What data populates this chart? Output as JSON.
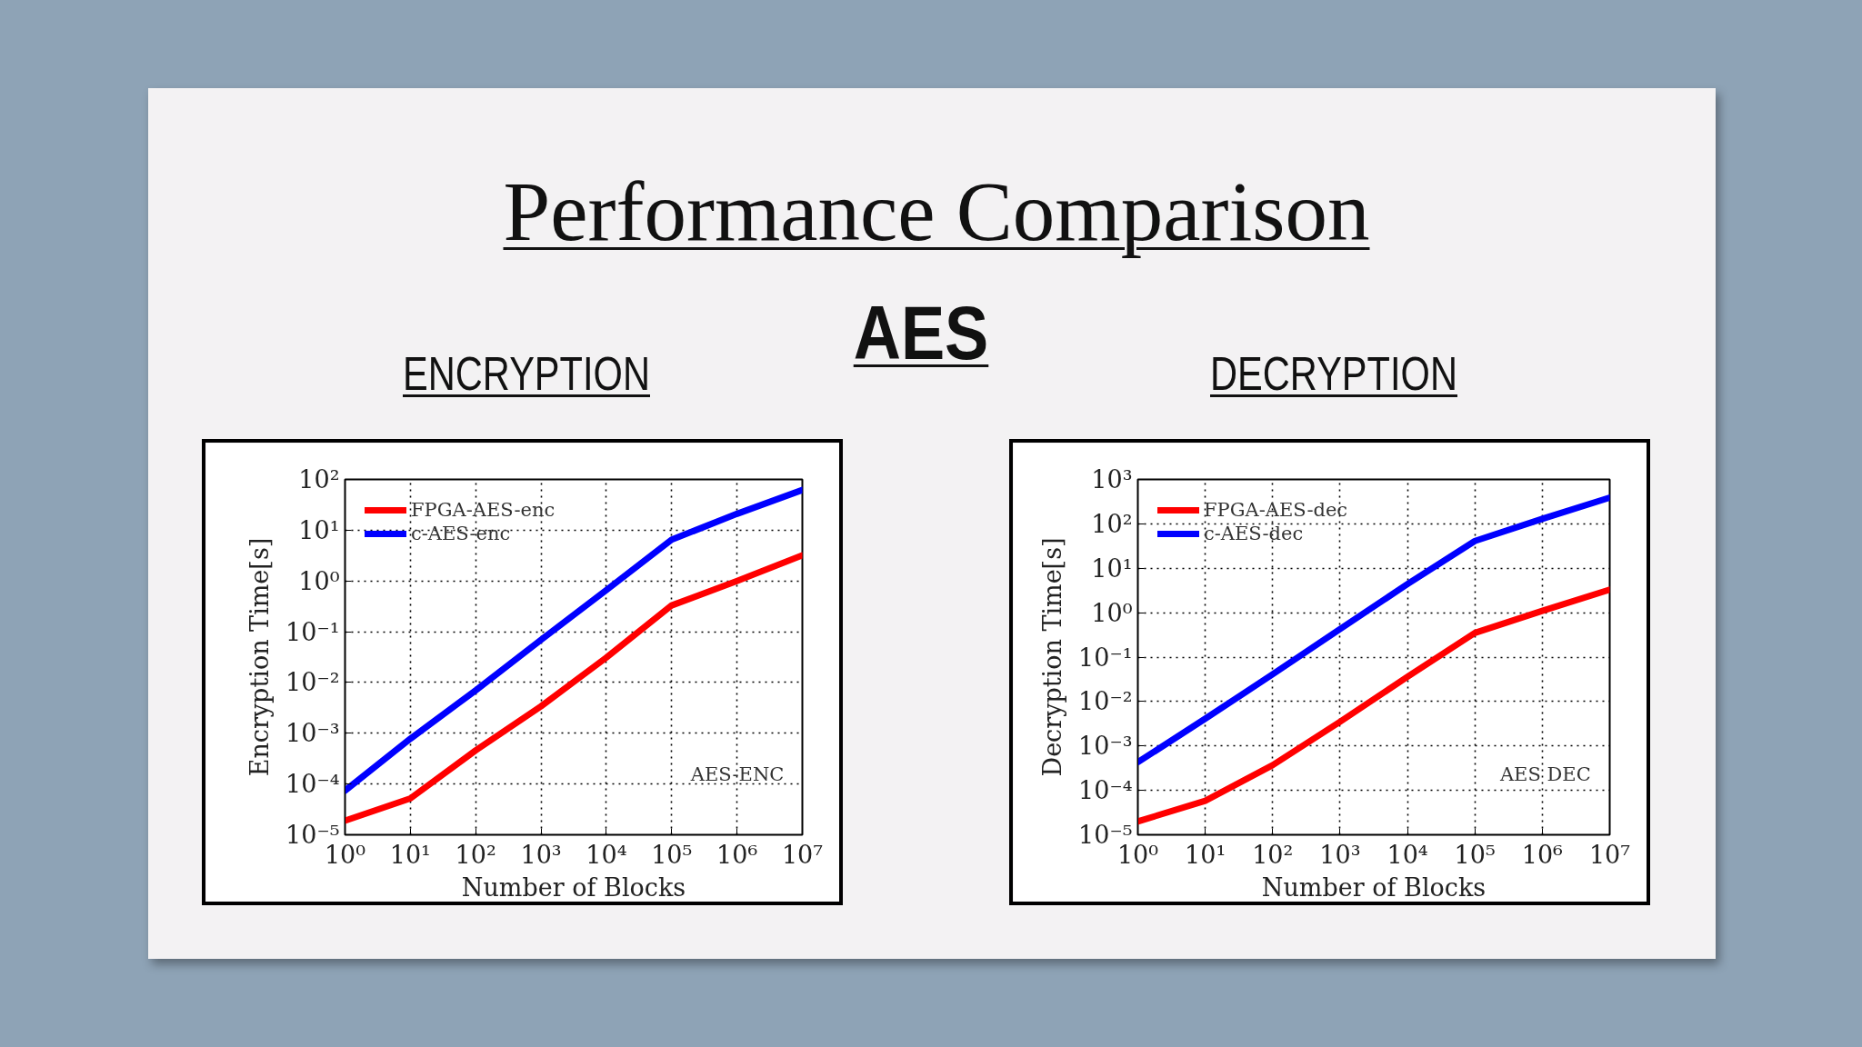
{
  "chart_data": [
    {
      "type": "other",
      "title": "Performance Comparison",
      "subtitle": "AES"
    },
    {
      "type": "line",
      "title": "ENCRYPTION",
      "xlabel": "Number of Blocks",
      "ylabel": "Encryption Time[s]",
      "x": [
        1,
        10,
        100,
        1000,
        10000,
        100000,
        1000000,
        10000000
      ],
      "series": [
        {
          "name": "FPGA-AES-enc",
          "color": "#ff0000",
          "values": [
            1.9e-05,
            5.2e-05,
            0.00046,
            0.0034,
            0.031,
            0.33,
            1.0,
            3.2
          ]
        },
        {
          "name": "c-AES-enc",
          "color": "#0000ff",
          "values": [
            7.4e-05,
            0.00078,
            0.007,
            0.069,
            0.66,
            6.5,
            21,
            62
          ]
        }
      ],
      "xlim": [
        1,
        10000000
      ],
      "ylim": [
        1e-05,
        100
      ],
      "xticks": [
        {
          "value": 1,
          "label": "10⁰"
        },
        {
          "value": 10,
          "label": "10¹"
        },
        {
          "value": 100,
          "label": "10²"
        },
        {
          "value": 1000,
          "label": "10³"
        },
        {
          "value": 10000,
          "label": "10⁴"
        },
        {
          "value": 100000,
          "label": "10⁵"
        },
        {
          "value": 1000000,
          "label": "10⁶"
        },
        {
          "value": 10000000,
          "label": "10⁷"
        }
      ],
      "yticks": [
        {
          "value": 1e-05,
          "label": "10⁻⁵"
        },
        {
          "value": 0.0001,
          "label": "10⁻⁴"
        },
        {
          "value": 0.001,
          "label": "10⁻³"
        },
        {
          "value": 0.01,
          "label": "10⁻²"
        },
        {
          "value": 0.1,
          "label": "10⁻¹"
        },
        {
          "value": 1,
          "label": "10⁰"
        },
        {
          "value": 10,
          "label": "10¹"
        },
        {
          "value": 100,
          "label": "10²"
        }
      ],
      "log": "xy",
      "grid": true,
      "legend": "top left",
      "line_style": "solid",
      "annotations": [
        "AES-ENC"
      ]
    },
    {
      "type": "line",
      "title": "DECRYPTION",
      "xlabel": "Number of Blocks",
      "ylabel": "Decryption Time[s]",
      "x": [
        1,
        10,
        100,
        1000,
        10000,
        100000,
        1000000,
        10000000
      ],
      "series": [
        {
          "name": "FPGA-AES-dec",
          "color": "#ff0000",
          "values": [
            2e-05,
            5.8e-05,
            0.00037,
            0.0035,
            0.036,
            0.35,
            1.1,
            3.3
          ]
        },
        {
          "name": "c-AES-dec",
          "color": "#0000ff",
          "values": [
            0.00043,
            0.0041,
            0.041,
            0.43,
            4.4,
            41,
            130,
            390
          ]
        }
      ],
      "xlim": [
        1,
        10000000
      ],
      "ylim": [
        1e-05,
        1000
      ],
      "xticks": [
        {
          "value": 1,
          "label": "10⁰"
        },
        {
          "value": 10,
          "label": "10¹"
        },
        {
          "value": 100,
          "label": "10²"
        },
        {
          "value": 1000,
          "label": "10³"
        },
        {
          "value": 10000,
          "label": "10⁴"
        },
        {
          "value": 100000,
          "label": "10⁵"
        },
        {
          "value": 1000000,
          "label": "10⁶"
        },
        {
          "value": 10000000,
          "label": "10⁷"
        }
      ],
      "yticks": [
        {
          "value": 1e-05,
          "label": "10⁻⁵"
        },
        {
          "value": 0.0001,
          "label": "10⁻⁴"
        },
        {
          "value": 0.001,
          "label": "10⁻³"
        },
        {
          "value": 0.01,
          "label": "10⁻²"
        },
        {
          "value": 0.1,
          "label": "10⁻¹"
        },
        {
          "value": 1,
          "label": "10⁰"
        },
        {
          "value": 10,
          "label": "10¹"
        },
        {
          "value": 100,
          "label": "10²"
        },
        {
          "value": 1000,
          "label": "10³"
        }
      ],
      "log": "xy",
      "grid": true,
      "legend": "top left",
      "line_style": "solid",
      "annotations": [
        "AES DEC"
      ]
    }
  ]
}
